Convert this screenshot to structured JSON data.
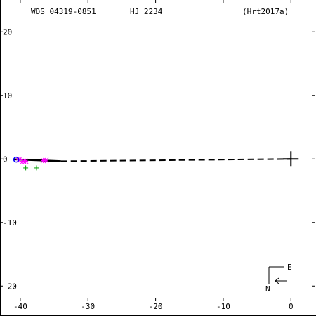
{
  "header": {
    "wds": "WDS 04319-0851",
    "name": "HJ 2234",
    "ref": "(Hrt2017a)"
  },
  "compass": {
    "east": "E",
    "north": "N"
  },
  "colors": {
    "axis": "#000000",
    "orbit": "#000000",
    "obs_green": "#00a000",
    "obs_magenta": "#ff00ff",
    "obs_blue": "#0000ff"
  },
  "chart_data": {
    "type": "scatter",
    "title": "",
    "xlabel": "",
    "ylabel": "",
    "xlim": [
      -43,
      3.5
    ],
    "ylim": [
      -24.5,
      25
    ],
    "xticks": [
      -40,
      -30,
      -20,
      -10,
      0
    ],
    "yticks": [
      -20,
      -10,
      0,
      10,
      20
    ],
    "xtick_labels": [
      "-40",
      "-30",
      "-20",
      "-10",
      "0"
    ],
    "ytick_labels": [
      "-20",
      "-10",
      "0",
      "10",
      "20"
    ],
    "primary": {
      "x": 0,
      "y": 0
    },
    "orbit_line": {
      "x": [
        -41.0,
        -34.0
      ],
      "y": [
        -0.05,
        -0.35
      ]
    },
    "dashed_line": {
      "x": [
        -34.0,
        0
      ],
      "y": [
        -0.35,
        0
      ]
    },
    "series": [
      {
        "marker": "plus",
        "color": "green",
        "x": [
          -39.2,
          -37.6
        ],
        "y": [
          -1.4,
          -1.4
        ]
      },
      {
        "marker": "star",
        "color": "magenta",
        "x": [
          -40.2,
          -39.6,
          -39.2,
          -36.6,
          -36.2
        ],
        "y": [
          -0.15,
          -0.35,
          -0.35,
          -0.25,
          -0.2
        ]
      },
      {
        "marker": "circle",
        "color": "blue",
        "x": [
          -40.6
        ],
        "y": [
          -0.1
        ]
      }
    ]
  }
}
